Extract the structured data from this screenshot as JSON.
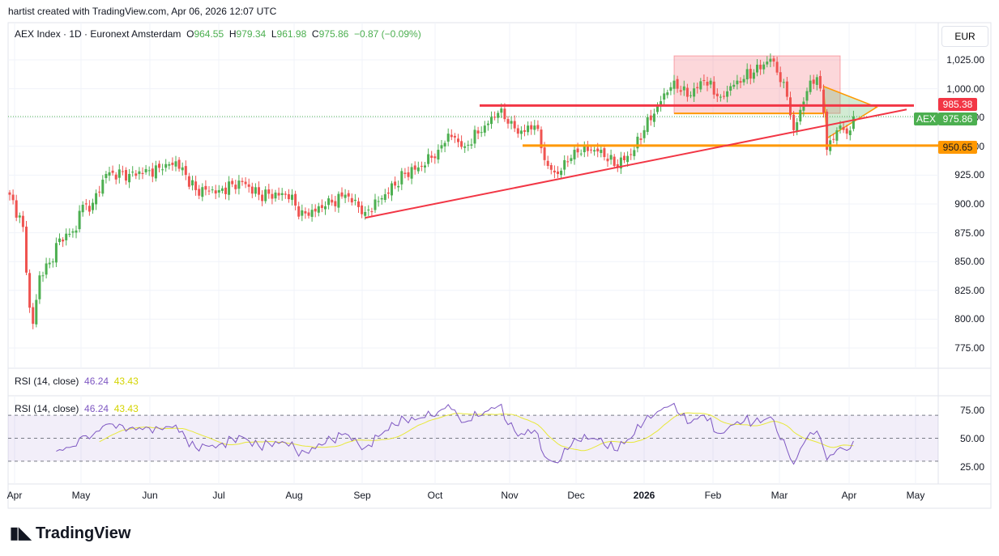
{
  "credit": "hartist created with TradingView.com, Apr 06, 2026 12:07 UTC",
  "legend": {
    "symbol": "AEX Index · 1D · Euronext Amsterdam",
    "o_label": "O",
    "o": "964.55",
    "h_label": "H",
    "h": "979.34",
    "l_label": "L",
    "l": "961.98",
    "c_label": "C",
    "c": "975.86",
    "change": "−0.87 (−0.09%)"
  },
  "currency": "EUR",
  "price_axis": [
    "1,025.00",
    "1,000.00",
    "975.00",
    "950.00",
    "925.00",
    "900.00",
    "875.00",
    "850.00",
    "825.00",
    "800.00",
    "775.00"
  ],
  "badges": {
    "red": "985.38",
    "symbol": "AEX",
    "last": "975.86",
    "orange": "950.65"
  },
  "rsi_panes": [
    {
      "label": "RSI (14, close)",
      "value": "46.24",
      "ma": "43.43"
    },
    {
      "label": "RSI (14, close)",
      "value": "46.24",
      "ma": "43.43"
    }
  ],
  "rsi_axis": [
    "75.00",
    "50.00",
    "25.00"
  ],
  "time_axis": [
    "Apr",
    "May",
    "Jun",
    "Jul",
    "Aug",
    "Sep",
    "Oct",
    "Nov",
    "Dec",
    "2026",
    "Feb",
    "Mar",
    "Apr",
    "May"
  ],
  "logo": "TradingView",
  "colors": {
    "up": "#4caf50",
    "down": "#ef5350",
    "red_line": "#f23645",
    "orange": "#ff9800",
    "rsi": "#7e57c2",
    "rsi_ma": "#e8e83a"
  },
  "chart_data": {
    "type": "candlestick",
    "title": "AEX Index · 1D · Euronext Amsterdam",
    "x_unit": "session index (approx.)",
    "ylim": [
      765,
      1040
    ],
    "close_keypoints": [
      [
        0,
        908
      ],
      [
        4,
        880
      ],
      [
        6,
        810
      ],
      [
        7,
        796
      ],
      [
        9,
        838
      ],
      [
        12,
        849
      ],
      [
        15,
        870
      ],
      [
        20,
        877
      ],
      [
        21,
        894
      ],
      [
        25,
        901
      ],
      [
        29,
        926
      ],
      [
        36,
        926
      ],
      [
        46,
        930
      ],
      [
        50,
        937
      ],
      [
        56,
        912
      ],
      [
        63,
        912
      ],
      [
        70,
        919
      ],
      [
        75,
        908
      ],
      [
        85,
        908
      ],
      [
        87,
        889
      ],
      [
        95,
        898
      ],
      [
        101,
        908
      ],
      [
        107,
        893
      ],
      [
        112,
        905
      ],
      [
        119,
        926
      ],
      [
        124,
        933
      ],
      [
        129,
        947
      ],
      [
        132,
        961
      ],
      [
        137,
        950
      ],
      [
        143,
        968
      ],
      [
        147,
        979
      ],
      [
        151,
        972
      ],
      [
        153,
        961
      ],
      [
        158,
        968
      ],
      [
        162,
        933
      ],
      [
        165,
        926
      ],
      [
        170,
        947
      ],
      [
        178,
        947
      ],
      [
        182,
        933
      ],
      [
        187,
        943
      ],
      [
        191,
        964
      ],
      [
        195,
        986
      ],
      [
        200,
        1007
      ],
      [
        204,
        993
      ],
      [
        209,
        1007
      ],
      [
        214,
        993
      ],
      [
        219,
        1007
      ],
      [
        224,
        1014
      ],
      [
        229,
        1026
      ],
      [
        231,
        1014
      ],
      [
        234,
        993
      ],
      [
        236,
        964
      ],
      [
        241,
        1007
      ],
      [
        243,
        1010
      ],
      [
        245,
        979
      ],
      [
        246,
        947
      ],
      [
        250,
        968
      ],
      [
        252,
        961
      ],
      [
        254,
        975.86
      ]
    ],
    "drawings": {
      "resistance": 985.38,
      "support": 950.65,
      "trendline": [
        [
          107,
          888
        ],
        [
          270,
          982
        ]
      ],
      "range_box": {
        "from": 200,
        "to": 250,
        "top": 1028.5,
        "bottom": 978.6
      },
      "triangle": [
        [
          245,
          1002
        ],
        [
          261,
          984
        ],
        [
          246,
          957
        ]
      ]
    },
    "rsi_levels": [
      70,
      50,
      30
    ]
  }
}
